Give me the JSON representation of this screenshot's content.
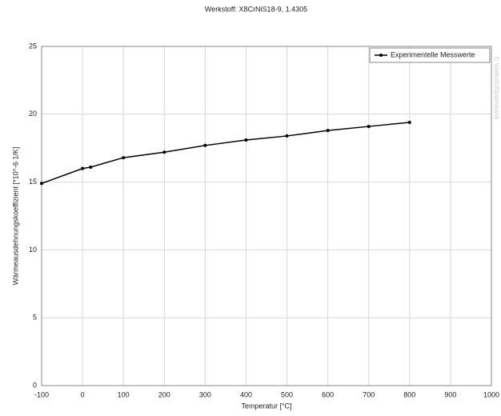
{
  "chart_data": {
    "type": "line",
    "title": "Werkstoff: X8CrNiS18-9, 1.4305",
    "x_label": "Temperatur [°C]",
    "y_label": "Wärmeausdehnungskoeffizient [*10^-6 1/K]",
    "watermark": "© Werkstoffdatenbank",
    "series": [
      {
        "name": "Experimentelle Messwerte",
        "color": "#000000",
        "x": [
          -100,
          0,
          20,
          100,
          200,
          300,
          400,
          500,
          600,
          700,
          800
        ],
        "values": [
          14.9,
          16.0,
          16.1,
          16.8,
          17.2,
          17.7,
          18.1,
          18.4,
          18.8,
          19.1,
          19.4
        ]
      }
    ],
    "xlim": [
      -100,
      1000
    ],
    "xticks": [
      -100,
      0,
      100,
      200,
      300,
      400,
      500,
      600,
      700,
      800,
      900,
      1000
    ],
    "ylim": [
      0,
      25
    ],
    "yticks": [
      0,
      5,
      10,
      15,
      20,
      25
    ],
    "grid": true,
    "legend": "top-right"
  }
}
